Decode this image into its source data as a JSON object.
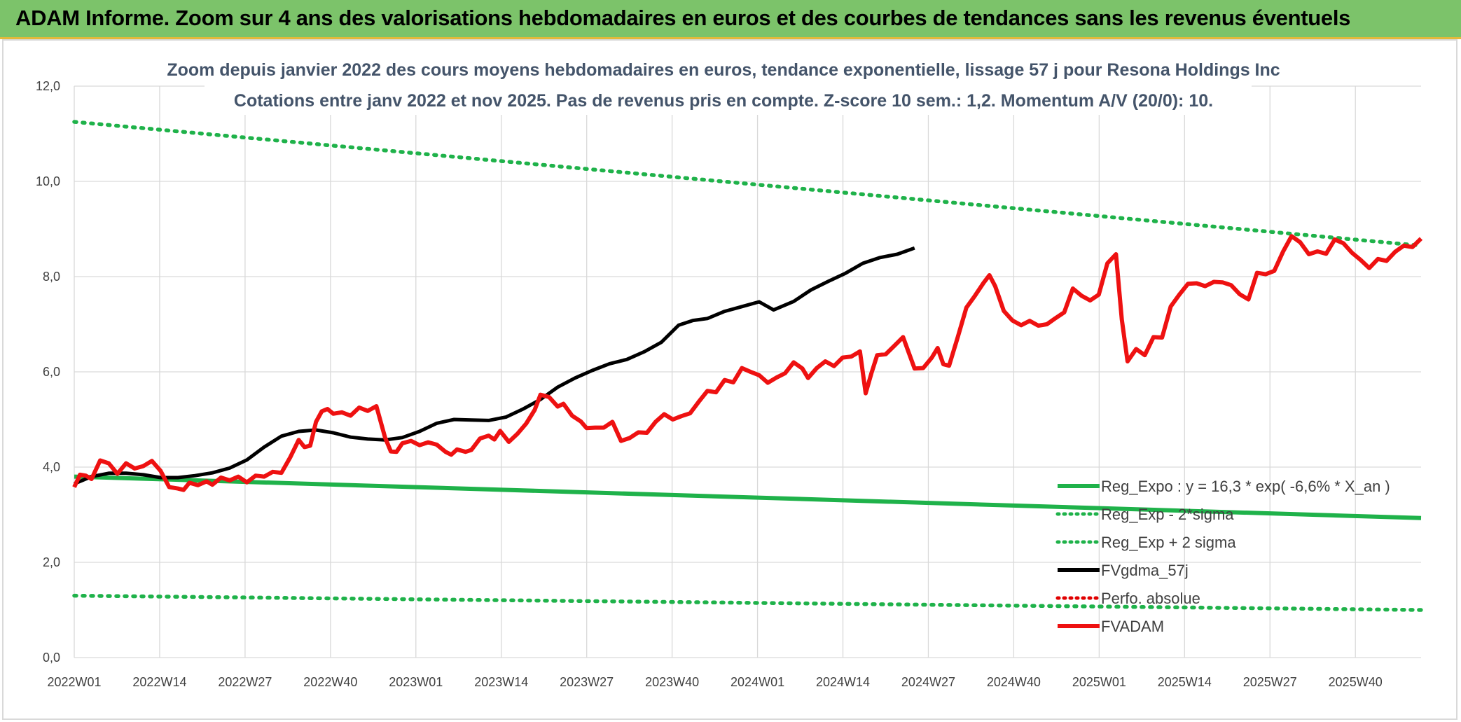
{
  "banner": {
    "title": "ADAM Informe. Zoom sur 4 ans des valorisations hebdomadaires en euros et des courbes de tendances sans les revenus éventuels"
  },
  "chart_data": {
    "type": "line",
    "title_line1": "Zoom depuis janvier 2022 des cours moyens hebdomadaires en euros, tendance exponentielle, lissage 57 j pour Resona Holdings Inc",
    "title_line2": "Cotations entre janv 2022 et nov 2025. Pas de revenus pris en compte. Z-score 10 sem.: 1,2. Momentum A/V (20/0): 10.",
    "ylim": [
      0,
      12
    ],
    "yticks": [
      "0,0",
      "2,0",
      "4,0",
      "6,0",
      "8,0",
      "10,0",
      "12,0"
    ],
    "xticks": [
      "2022W01",
      "2022W14",
      "2022W27",
      "2022W40",
      "2023W01",
      "2023W14",
      "2023W27",
      "2023W40",
      "2024W01",
      "2024W14",
      "2024W27",
      "2024W40",
      "2025W01",
      "2025W14",
      "2025W27",
      "2025W40"
    ],
    "n_weeks": 206,
    "legend": [
      {
        "label": "Reg_Expo : y = 16,3 * exp( -6,6% *  X_an )",
        "color": "#1fb24a",
        "style": "solid"
      },
      {
        "label": "Reg_Exp - 2*sigma",
        "color": "#1fb24a",
        "style": "dotted"
      },
      {
        "label": "Reg_Exp + 2 sigma",
        "color": "#1fb24a",
        "style": "dotted"
      },
      {
        "label": "FVgdma_57j",
        "color": "#000000",
        "style": "solid"
      },
      {
        "label": "Perfo. absolue",
        "color": "#e00000",
        "style": "dotted"
      },
      {
        "label": "FVADAM",
        "color": "#ee1111",
        "style": "solid"
      }
    ],
    "series": [
      {
        "name": "Reg_Expo",
        "start": 3.8,
        "end": 2.93
      },
      {
        "name": "Reg_Exp - 2*sigma",
        "start": 1.3,
        "end": 1.0
      },
      {
        "name": "Reg_Exp + 2 sigma",
        "start": 11.25,
        "end": 8.65
      },
      {
        "name": "FVgdma_57j",
        "points": [
          [
            0,
            3.65
          ],
          [
            6,
            3.8
          ],
          [
            12,
            3.87
          ],
          [
            18,
            3.87
          ],
          [
            24,
            3.84
          ],
          [
            30,
            3.78
          ],
          [
            36,
            3.78
          ],
          [
            42,
            3.82
          ],
          [
            48,
            3.88
          ],
          [
            54,
            3.98
          ],
          [
            60,
            4.15
          ],
          [
            66,
            4.42
          ],
          [
            72,
            4.65
          ],
          [
            78,
            4.75
          ],
          [
            84,
            4.78
          ],
          [
            90,
            4.72
          ],
          [
            96,
            4.63
          ],
          [
            102,
            4.59
          ],
          [
            108,
            4.57
          ],
          [
            114,
            4.62
          ],
          [
            120,
            4.75
          ],
          [
            126,
            4.92
          ],
          [
            132,
            5.0
          ],
          [
            138,
            4.99
          ],
          [
            144,
            4.98
          ],
          [
            150,
            5.05
          ],
          [
            156,
            5.22
          ],
          [
            162,
            5.42
          ],
          [
            168,
            5.68
          ],
          [
            174,
            5.87
          ],
          [
            180,
            6.03
          ],
          [
            186,
            6.17
          ],
          [
            192,
            6.26
          ],
          [
            198,
            6.42
          ],
          [
            204,
            6.62
          ],
          [
            210,
            6.98
          ],
          [
            215,
            7.08
          ],
          [
            220,
            7.12
          ],
          [
            226,
            7.27
          ],
          [
            232,
            7.37
          ],
          [
            238,
            7.47
          ],
          [
            243,
            7.3
          ],
          [
            250,
            7.48
          ],
          [
            256,
            7.72
          ],
          [
            262,
            7.9
          ],
          [
            268,
            8.07
          ],
          [
            274,
            8.28
          ],
          [
            280,
            8.4
          ],
          [
            286,
            8.47
          ],
          [
            292,
            8.6
          ]
        ]
      },
      {
        "name": "FVADAM",
        "points": [
          [
            0,
            3.58
          ],
          [
            2,
            3.84
          ],
          [
            4,
            3.82
          ],
          [
            6,
            3.75
          ],
          [
            9,
            4.14
          ],
          [
            12,
            4.08
          ],
          [
            15,
            3.86
          ],
          [
            18,
            4.08
          ],
          [
            21,
            3.97
          ],
          [
            24,
            4.02
          ],
          [
            27,
            4.13
          ],
          [
            30,
            3.92
          ],
          [
            33,
            3.58
          ],
          [
            36,
            3.55
          ],
          [
            38,
            3.52
          ],
          [
            40,
            3.67
          ],
          [
            43,
            3.62
          ],
          [
            46,
            3.7
          ],
          [
            48,
            3.63
          ],
          [
            51,
            3.78
          ],
          [
            54,
            3.72
          ],
          [
            57,
            3.8
          ],
          [
            60,
            3.68
          ],
          [
            63,
            3.82
          ],
          [
            66,
            3.8
          ],
          [
            69,
            3.9
          ],
          [
            72,
            3.88
          ],
          [
            75,
            4.2
          ],
          [
            78,
            4.57
          ],
          [
            80,
            4.42
          ],
          [
            82,
            4.45
          ],
          [
            84,
            4.95
          ],
          [
            86,
            5.17
          ],
          [
            88,
            5.22
          ],
          [
            90,
            5.12
          ],
          [
            93,
            5.15
          ],
          [
            96,
            5.08
          ],
          [
            99,
            5.25
          ],
          [
            102,
            5.18
          ],
          [
            105,
            5.28
          ],
          [
            108,
            4.62
          ],
          [
            110,
            4.33
          ],
          [
            112,
            4.32
          ],
          [
            114,
            4.5
          ],
          [
            117,
            4.55
          ],
          [
            120,
            4.46
          ],
          [
            123,
            4.52
          ],
          [
            126,
            4.47
          ],
          [
            129,
            4.32
          ],
          [
            131,
            4.26
          ],
          [
            133,
            4.37
          ],
          [
            136,
            4.32
          ],
          [
            138,
            4.36
          ],
          [
            141,
            4.6
          ],
          [
            144,
            4.66
          ],
          [
            146,
            4.58
          ],
          [
            148,
            4.76
          ],
          [
            151,
            4.53
          ],
          [
            154,
            4.7
          ],
          [
            157,
            4.91
          ],
          [
            160,
            5.2
          ],
          [
            162,
            5.52
          ],
          [
            165,
            5.47
          ],
          [
            168,
            5.27
          ],
          [
            170,
            5.33
          ],
          [
            173,
            5.08
          ],
          [
            176,
            4.96
          ],
          [
            178,
            4.82
          ],
          [
            181,
            4.83
          ],
          [
            184,
            4.83
          ],
          [
            187,
            4.95
          ],
          [
            190,
            4.55
          ],
          [
            193,
            4.61
          ],
          [
            196,
            4.73
          ],
          [
            199,
            4.72
          ],
          [
            202,
            4.95
          ],
          [
            205,
            5.11
          ],
          [
            208,
            5.0
          ],
          [
            211,
            5.07
          ],
          [
            214,
            5.13
          ],
          [
            217,
            5.37
          ],
          [
            220,
            5.6
          ],
          [
            223,
            5.57
          ],
          [
            226,
            5.83
          ],
          [
            229,
            5.78
          ],
          [
            232,
            6.08
          ],
          [
            235,
            6.0
          ],
          [
            238,
            5.93
          ],
          [
            241,
            5.77
          ],
          [
            244,
            5.88
          ],
          [
            247,
            5.97
          ],
          [
            250,
            6.2
          ],
          [
            253,
            6.07
          ],
          [
            255,
            5.87
          ],
          [
            258,
            6.08
          ],
          [
            261,
            6.22
          ],
          [
            264,
            6.12
          ],
          [
            267,
            6.3
          ],
          [
            270,
            6.32
          ],
          [
            273,
            6.43
          ],
          [
            275,
            5.55
          ],
          [
            277,
            5.97
          ],
          [
            279,
            6.35
          ],
          [
            282,
            6.37
          ],
          [
            285,
            6.55
          ],
          [
            288,
            6.73
          ],
          [
            290,
            6.4
          ],
          [
            292,
            6.07
          ],
          [
            295,
            6.08
          ],
          [
            298,
            6.3
          ],
          [
            300,
            6.5
          ],
          [
            302,
            6.16
          ],
          [
            304,
            6.13
          ],
          [
            307,
            6.73
          ],
          [
            310,
            7.35
          ],
          [
            313,
            7.6
          ],
          [
            316,
            7.87
          ],
          [
            318,
            8.03
          ],
          [
            320,
            7.8
          ],
          [
            323,
            7.28
          ],
          [
            326,
            7.08
          ],
          [
            329,
            6.98
          ],
          [
            332,
            7.07
          ],
          [
            335,
            6.97
          ],
          [
            338,
            7.0
          ],
          [
            341,
            7.13
          ],
          [
            344,
            7.25
          ],
          [
            347,
            7.75
          ],
          [
            350,
            7.6
          ],
          [
            353,
            7.5
          ],
          [
            356,
            7.62
          ],
          [
            359,
            8.28
          ],
          [
            362,
            8.47
          ],
          [
            364,
            7.1
          ],
          [
            366,
            6.22
          ],
          [
            369,
            6.48
          ],
          [
            372,
            6.35
          ],
          [
            375,
            6.73
          ],
          [
            378,
            6.72
          ],
          [
            381,
            7.37
          ],
          [
            384,
            7.62
          ],
          [
            387,
            7.85
          ],
          [
            390,
            7.86
          ],
          [
            393,
            7.8
          ],
          [
            396,
            7.89
          ],
          [
            399,
            7.88
          ],
          [
            402,
            7.82
          ],
          [
            405,
            7.63
          ],
          [
            408,
            7.52
          ],
          [
            411,
            8.08
          ],
          [
            414,
            8.05
          ],
          [
            417,
            8.12
          ],
          [
            420,
            8.52
          ],
          [
            423,
            8.85
          ],
          [
            426,
            8.72
          ],
          [
            429,
            8.47
          ],
          [
            432,
            8.53
          ],
          [
            435,
            8.48
          ],
          [
            438,
            8.78
          ],
          [
            441,
            8.7
          ],
          [
            444,
            8.5
          ],
          [
            447,
            8.35
          ],
          [
            450,
            8.18
          ],
          [
            453,
            8.37
          ],
          [
            456,
            8.33
          ],
          [
            459,
            8.52
          ],
          [
            462,
            8.65
          ],
          [
            465,
            8.62
          ],
          [
            468,
            8.8
          ]
        ]
      }
    ]
  }
}
